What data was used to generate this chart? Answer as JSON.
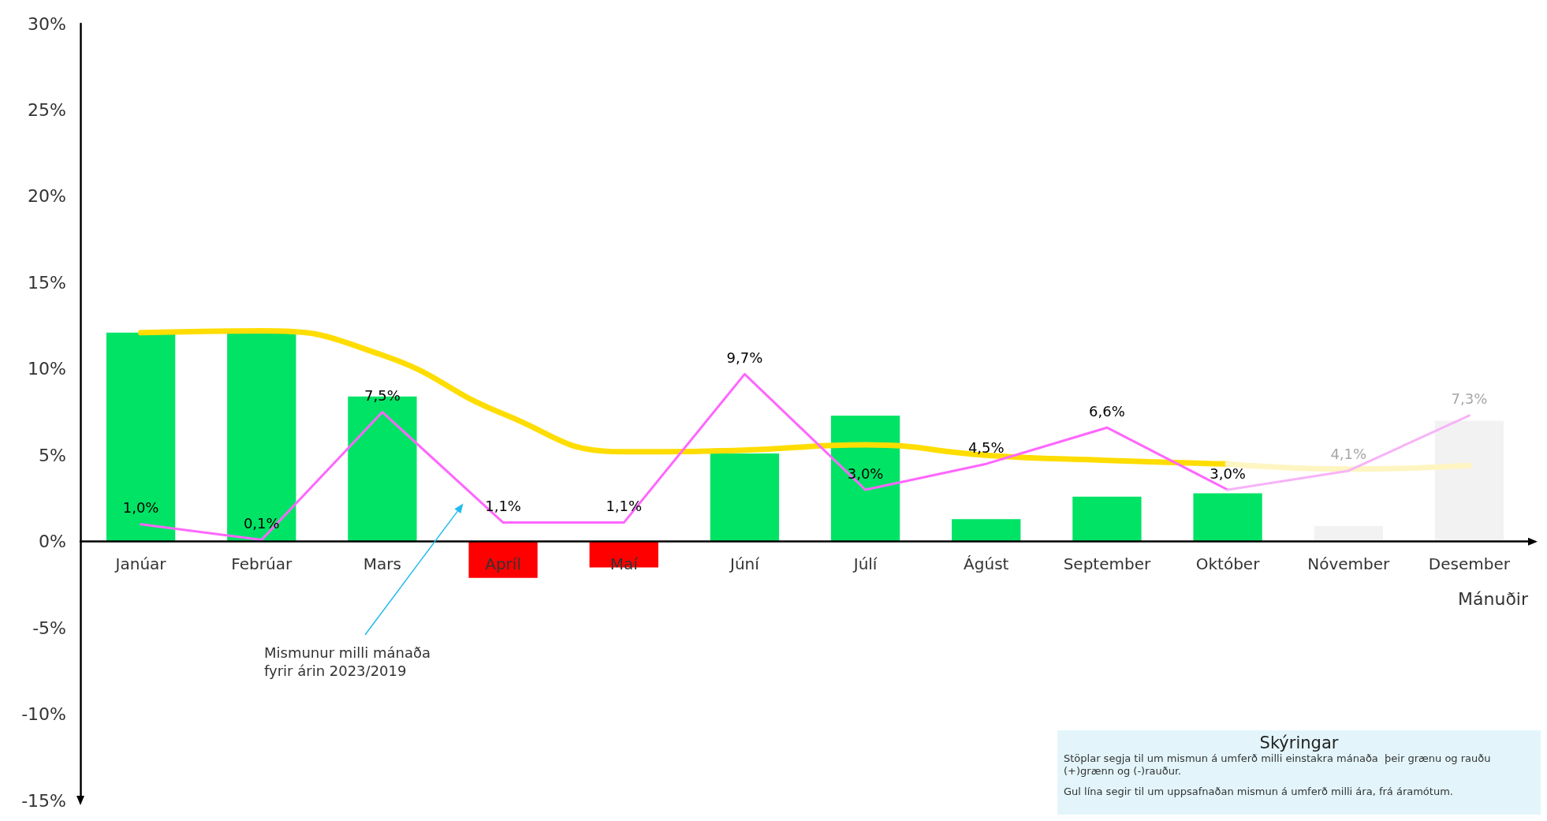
{
  "chart_data": {
    "type": "bar",
    "xlabel": "Mánuðir",
    "categories": [
      "Janúar",
      "Febrúar",
      "Mars",
      "Apríl",
      "Maí",
      "Júní",
      "Júlí",
      "Ágúst",
      "September",
      "Október",
      "Nóvember",
      "Desember"
    ],
    "series": [
      {
        "values": [
          12.1,
          12.1,
          8.4,
          -2.1,
          -1.5,
          5.1,
          7.3,
          1.3,
          2.6,
          2.8,
          0.9,
          7.0
        ],
        "colors": [
          "#00e365",
          "#00e365",
          "#00e365",
          "#ff0000",
          "#ff0000",
          "#00e365",
          "#00e365",
          "#00e365",
          "#00e365",
          "#00e365",
          "#f2f2f2",
          "#f2f2f2"
        ]
      },
      {
        "type": "line",
        "color": "#ffdd00",
        "values": [
          12.1,
          12.2,
          10.8,
          7.4,
          5.2,
          5.3,
          5.6,
          5.0,
          4.7,
          4.5,
          null,
          null
        ]
      },
      {
        "type": "line",
        "color": "#fff5c2",
        "values": [
          null,
          null,
          null,
          null,
          null,
          null,
          null,
          null,
          null,
          4.5,
          4.2,
          4.4
        ]
      },
      {
        "type": "line",
        "color": "#ff66ff",
        "values": [
          1.0,
          0.1,
          7.5,
          1.1,
          1.1,
          9.7,
          3.0,
          4.5,
          6.6,
          3.0,
          null,
          null
        ],
        "value_labels": [
          "1,0%",
          "0,1%",
          "7,5%",
          "1,1%",
          "1,1%",
          "9,7%",
          "3,0%",
          "4,5%",
          "6,6%",
          "3,0%",
          null,
          null
        ]
      },
      {
        "type": "line",
        "color": "#f7b3f7",
        "values": [
          null,
          null,
          null,
          null,
          null,
          null,
          null,
          null,
          null,
          3.0,
          4.1,
          7.3
        ],
        "value_labels": [
          null,
          null,
          null,
          null,
          null,
          null,
          null,
          null,
          null,
          null,
          "4,1%",
          "7,3%"
        ]
      }
    ],
    "ylim": [
      -15,
      30
    ],
    "yticks": [
      {
        "value": -15,
        "label": "-15%"
      },
      {
        "value": -10,
        "label": "-10%"
      },
      {
        "value": -5,
        "label": "-5%"
      },
      {
        "value": 0,
        "label": "0%"
      },
      {
        "value": 5,
        "label": "5%"
      },
      {
        "value": 10,
        "label": "10%"
      },
      {
        "value": 15,
        "label": "15%"
      },
      {
        "value": 20,
        "label": "20%"
      },
      {
        "value": 25,
        "label": "25%"
      },
      {
        "value": 30,
        "label": "30%"
      }
    ],
    "marker": "none",
    "annotations": [
      "Mismunur milli mánaða fyrir árin 2023/2019",
      "Skýringar",
      "Stöplar segja til um mismun á umferð milli einstakra mánaða  þeir grænu og rauðu (+)grænn og (-)rauður.",
      "Gul lína segir til um uppsafnaðan mismun á umferð milli ára, frá áramótum."
    ]
  }
}
